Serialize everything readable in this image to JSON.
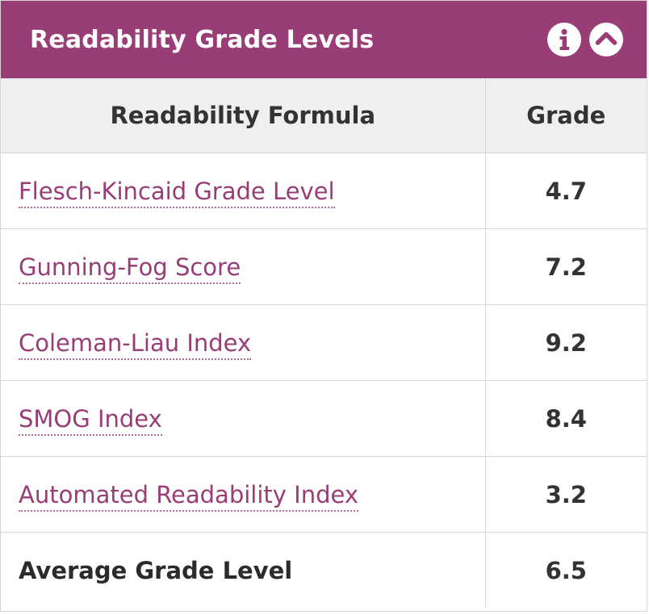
{
  "panel": {
    "title": "Readability Grade Levels",
    "info_icon": "info-icon",
    "collapse_icon": "chevron-up-icon",
    "accent_color": "#993d77"
  },
  "table": {
    "headers": {
      "formula": "Readability Formula",
      "grade": "Grade"
    },
    "rows": [
      {
        "name": "Flesch-Kincaid Grade Level",
        "grade": "4.7"
      },
      {
        "name": "Gunning-Fog Score",
        "grade": "7.2"
      },
      {
        "name": "Coleman-Liau Index",
        "grade": "9.2"
      },
      {
        "name": "SMOG Index",
        "grade": "8.4"
      },
      {
        "name": "Automated Readability Index",
        "grade": "3.2"
      }
    ],
    "average": {
      "label": "Average Grade Level",
      "grade": "6.5"
    }
  }
}
